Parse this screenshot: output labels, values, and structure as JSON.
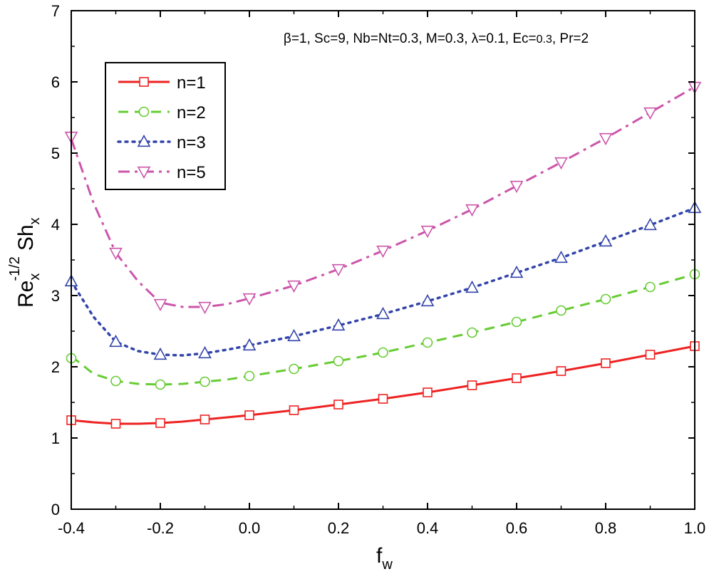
{
  "chart_data": {
    "type": "line",
    "xlabel": "f",
    "xlabel_sub": "w",
    "ylabel": {
      "base": "Re",
      "base_sub": "x",
      "base_sup": "-1/2",
      "term": "Sh",
      "term_sub": "x"
    },
    "xlim": [
      -0.4,
      1.0
    ],
    "ylim": [
      0,
      7
    ],
    "xticks": [
      "-0.4",
      "-0.2",
      "0.0",
      "0.2",
      "0.4",
      "0.6",
      "0.8",
      "1.0"
    ],
    "yticks": [
      "0",
      "1",
      "2",
      "3",
      "4",
      "5",
      "6",
      "7"
    ],
    "annotation": {
      "prefix": "β=1, Sc=9, Nb=Nt=0.3, M=0.3, λ=0.1, Ec=",
      "ec_value": "0.3",
      "suffix": ", Pr=2"
    },
    "legend_position": "top-left",
    "x": [
      -0.4,
      -0.3,
      -0.2,
      -0.1,
      0.0,
      0.1,
      0.2,
      0.3,
      0.4,
      0.5,
      0.6,
      0.7,
      0.8,
      0.9,
      1.0
    ],
    "series": [
      {
        "name": "n=1",
        "color": "#ee2222",
        "marker": "square",
        "line_style": "solid",
        "curve": [
          [
            -0.4,
            1.25
          ],
          [
            -0.35,
            1.22
          ],
          [
            -0.3,
            1.2
          ],
          [
            -0.25,
            1.2
          ],
          [
            -0.2,
            1.21
          ],
          [
            -0.15,
            1.23
          ],
          [
            -0.1,
            1.26
          ],
          [
            -0.05,
            1.29
          ],
          [
            0.0,
            1.32
          ],
          [
            0.1,
            1.39
          ],
          [
            0.2,
            1.47
          ],
          [
            0.3,
            1.55
          ],
          [
            0.4,
            1.64
          ],
          [
            0.5,
            1.74
          ],
          [
            0.6,
            1.84
          ],
          [
            0.7,
            1.94
          ],
          [
            0.8,
            2.05
          ],
          [
            0.9,
            2.17
          ],
          [
            1.0,
            2.29
          ]
        ],
        "values": [
          1.25,
          1.2,
          1.21,
          1.26,
          1.32,
          1.39,
          1.47,
          1.55,
          1.64,
          1.74,
          1.84,
          1.94,
          2.05,
          2.17,
          2.29
        ]
      },
      {
        "name": "n=2",
        "color": "#66cc33",
        "marker": "circle",
        "line_style": "dashed",
        "curve": [
          [
            -0.4,
            2.15
          ],
          [
            -0.35,
            1.9
          ],
          [
            -0.3,
            1.8
          ],
          [
            -0.25,
            1.76
          ],
          [
            -0.2,
            1.75
          ],
          [
            -0.15,
            1.76
          ],
          [
            -0.1,
            1.79
          ],
          [
            -0.05,
            1.82
          ],
          [
            0.0,
            1.87
          ],
          [
            0.1,
            1.97
          ],
          [
            0.2,
            2.08
          ],
          [
            0.3,
            2.2
          ],
          [
            0.4,
            2.34
          ],
          [
            0.5,
            2.48
          ],
          [
            0.6,
            2.63
          ],
          [
            0.7,
            2.79
          ],
          [
            0.8,
            2.95
          ],
          [
            0.9,
            3.12
          ],
          [
            1.0,
            3.3
          ]
        ],
        "values": [
          2.12,
          1.8,
          1.75,
          1.79,
          1.87,
          1.97,
          2.08,
          2.2,
          2.34,
          2.48,
          2.63,
          2.79,
          2.95,
          3.12,
          3.3
        ]
      },
      {
        "name": "n=3",
        "color": "#3344aa",
        "marker": "triangle-up",
        "line_style": "dotted",
        "curve": [
          [
            -0.4,
            3.2
          ],
          [
            -0.35,
            2.7
          ],
          [
            -0.3,
            2.35
          ],
          [
            -0.25,
            2.22
          ],
          [
            -0.2,
            2.17
          ],
          [
            -0.15,
            2.16
          ],
          [
            -0.1,
            2.19
          ],
          [
            -0.05,
            2.24
          ],
          [
            0.0,
            2.3
          ],
          [
            0.1,
            2.43
          ],
          [
            0.2,
            2.58
          ],
          [
            0.3,
            2.74
          ],
          [
            0.4,
            2.92
          ],
          [
            0.5,
            3.11
          ],
          [
            0.6,
            3.32
          ],
          [
            0.7,
            3.53
          ],
          [
            0.8,
            3.76
          ],
          [
            0.9,
            3.99
          ],
          [
            1.0,
            4.23
          ]
        ],
        "values": [
          3.2,
          2.35,
          2.17,
          2.19,
          2.3,
          2.43,
          2.58,
          2.74,
          2.92,
          3.11,
          3.32,
          3.53,
          3.76,
          3.99,
          4.23
        ]
      },
      {
        "name": "n=5",
        "color": "#cc55aa",
        "marker": "triangle-down",
        "line_style": "dashdot",
        "curve": [
          [
            -0.4,
            5.2
          ],
          [
            -0.35,
            4.3
          ],
          [
            -0.3,
            3.6
          ],
          [
            -0.25,
            3.2
          ],
          [
            -0.2,
            2.9
          ],
          [
            -0.15,
            2.84
          ],
          [
            -0.1,
            2.84
          ],
          [
            -0.05,
            2.88
          ],
          [
            0.0,
            2.96
          ],
          [
            0.1,
            3.14
          ],
          [
            0.2,
            3.37
          ],
          [
            0.3,
            3.63
          ],
          [
            0.4,
            3.91
          ],
          [
            0.5,
            4.21
          ],
          [
            0.6,
            4.54
          ],
          [
            0.7,
            4.87
          ],
          [
            0.8,
            5.21
          ],
          [
            0.9,
            5.57
          ],
          [
            1.0,
            5.93
          ]
        ],
        "values": [
          5.23,
          3.6,
          2.88,
          2.84,
          2.96,
          3.14,
          3.37,
          3.63,
          3.91,
          4.21,
          4.54,
          4.87,
          5.21,
          5.57,
          5.93
        ]
      }
    ]
  }
}
